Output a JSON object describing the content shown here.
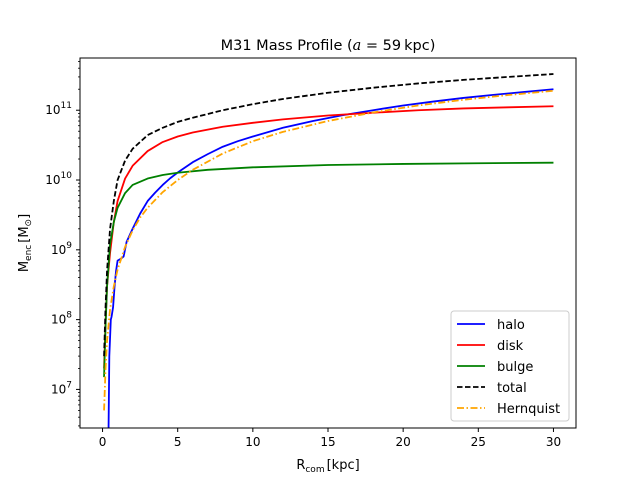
{
  "chart_data": {
    "type": "line",
    "title": {
      "prefix": "M31 Mass Profile (",
      "var": "a",
      "eq": " = 59",
      "unit": "kpc",
      "suffix": ")"
    },
    "xlabel": {
      "main": "R",
      "sub": "com",
      "unit": "[kpc]"
    },
    "ylabel": {
      "main": "M",
      "sub": "enc",
      "unit": "[M",
      "unit_sub": "⊙",
      "unit_close": "]"
    },
    "xlim": [
      -1.5,
      31.5
    ],
    "ylim": [
      2800000.0,
      560000000000.0
    ],
    "yscale": "log",
    "xticks": [
      0,
      5,
      10,
      15,
      20,
      25,
      30
    ],
    "xtick_labels": [
      "0",
      "5",
      "10",
      "15",
      "20",
      "25",
      "30"
    ],
    "yticks": [
      7,
      8,
      9,
      10,
      11
    ],
    "grid": false,
    "legend_position": "lower-right",
    "series": [
      {
        "name": "halo",
        "color": "#0000ff",
        "dash": "solid",
        "points": [
          [
            0.4,
            2800000.0
          ],
          [
            0.45,
            30000000.0
          ],
          [
            0.55,
            100000000.0
          ],
          [
            0.6,
            110000000.0
          ],
          [
            0.7,
            150000000.0
          ],
          [
            0.8,
            300000000.0
          ],
          [
            0.9,
            500000000.0
          ],
          [
            1.0,
            700000000.0
          ],
          [
            1.2,
            740000000.0
          ],
          [
            1.4,
            800000000.0
          ],
          [
            1.6,
            1300000000.0
          ],
          [
            2.0,
            2000000000.0
          ],
          [
            2.5,
            3300000000.0
          ],
          [
            3.0,
            5000000000.0
          ],
          [
            3.5,
            6600000000.0
          ],
          [
            4.0,
            8500000000.0
          ],
          [
            4.5,
            10600000000.0
          ],
          [
            5.0,
            12800000000.0
          ],
          [
            6.0,
            18000000000.0
          ],
          [
            7.0,
            23500000000.0
          ],
          [
            8.0,
            30000000000.0
          ],
          [
            9.0,
            36000000000.0
          ],
          [
            10.0,
            42000000000.0
          ],
          [
            12.0,
            56000000000.0
          ],
          [
            14.0,
            70000000000.0
          ],
          [
            16.0,
            85000000000.0
          ],
          [
            18.0,
            100000000000.0
          ],
          [
            20.0,
            117000000000.0
          ],
          [
            22.0,
            133000000000.0
          ],
          [
            24.0,
            150000000000.0
          ],
          [
            26.0,
            166000000000.0
          ],
          [
            28.0,
            182000000000.0
          ],
          [
            30.0,
            200000000000.0
          ]
        ]
      },
      {
        "name": "disk",
        "color": "#ff0000",
        "dash": "solid",
        "points": [
          [
            0.1,
            20000000.0
          ],
          [
            0.2,
            90000000.0
          ],
          [
            0.3,
            300000000.0
          ],
          [
            0.5,
            900000000.0
          ],
          [
            0.75,
            2500000000.0
          ],
          [
            1.0,
            5000000000.0
          ],
          [
            1.5,
            10500000000.0
          ],
          [
            2.0,
            16000000000.0
          ],
          [
            3.0,
            26000000000.0
          ],
          [
            4.0,
            35000000000.0
          ],
          [
            5.0,
            42000000000.0
          ],
          [
            6.0,
            48000000000.0
          ],
          [
            8.0,
            58000000000.0
          ],
          [
            10.0,
            66000000000.0
          ],
          [
            12.0,
            74000000000.0
          ],
          [
            15.0,
            84000000000.0
          ],
          [
            18.0,
            92000000000.0
          ],
          [
            21.0,
            100000000000.0
          ],
          [
            24.0,
            106000000000.0
          ],
          [
            27.0,
            110000000000.0
          ],
          [
            30.0,
            114000000000.0
          ]
        ]
      },
      {
        "name": "bulge",
        "color": "#008000",
        "dash": "solid",
        "points": [
          [
            0.1,
            15000000.0
          ],
          [
            0.2,
            80000000.0
          ],
          [
            0.3,
            300000000.0
          ],
          [
            0.5,
            1200000000.0
          ],
          [
            0.75,
            2500000000.0
          ],
          [
            1.0,
            4000000000.0
          ],
          [
            1.5,
            6500000000.0
          ],
          [
            2.0,
            8500000000.0
          ],
          [
            3.0,
            10500000000.0
          ],
          [
            4.0,
            11800000000.0
          ],
          [
            5.0,
            12700000000.0
          ],
          [
            7.0,
            14000000000.0
          ],
          [
            10.0,
            15200000000.0
          ],
          [
            15.0,
            16400000000.0
          ],
          [
            20.0,
            17000000000.0
          ],
          [
            25.0,
            17400000000.0
          ],
          [
            30.0,
            17700000000.0
          ]
        ]
      },
      {
        "name": "total",
        "color": "#000000",
        "dash": "dashed",
        "points": [
          [
            0.1,
            30000000.0
          ],
          [
            0.2,
            150000000.0
          ],
          [
            0.3,
            500000000.0
          ],
          [
            0.5,
            2000000000.0
          ],
          [
            0.75,
            5000000000.0
          ],
          [
            1.0,
            10000000000.0
          ],
          [
            1.5,
            19000000000.0
          ],
          [
            2.0,
            28000000000.0
          ],
          [
            3.0,
            44000000000.0
          ],
          [
            4.0,
            56000000000.0
          ],
          [
            5.0,
            68000000000.0
          ],
          [
            6.0,
            78000000000.0
          ],
          [
            8.0,
            100000000000.0
          ],
          [
            10.0,
            122000000000.0
          ],
          [
            12.0,
            145000000000.0
          ],
          [
            15.0,
            178000000000.0
          ],
          [
            18.0,
            210000000000.0
          ],
          [
            21.0,
            242000000000.0
          ],
          [
            24.0,
            272000000000.0
          ],
          [
            27.0,
            300000000000.0
          ],
          [
            30.0,
            330000000000.0
          ]
        ]
      },
      {
        "name": "Hernquist",
        "color": "#ffa500",
        "dash": "dashdot",
        "points": [
          [
            0.1,
            5000000.0
          ],
          [
            0.2,
            20000000.0
          ],
          [
            0.3,
            50000000.0
          ],
          [
            0.5,
            140000000.0
          ],
          [
            0.75,
            300000000.0
          ],
          [
            1.0,
            520000000.0
          ],
          [
            1.5,
            1100000000.0
          ],
          [
            2.0,
            1900000000.0
          ],
          [
            2.5,
            2900000000.0
          ],
          [
            3.0,
            4000000000.0
          ],
          [
            4.0,
            6700000000.0
          ],
          [
            5.0,
            10000000000.0
          ],
          [
            6.0,
            14000000000.0
          ],
          [
            8.0,
            24000000000.0
          ],
          [
            10.0,
            36000000000.0
          ],
          [
            12.0,
            49000000000.0
          ],
          [
            15.0,
            70000000000.0
          ],
          [
            18.0,
            93000000000.0
          ],
          [
            21.0,
            117000000000.0
          ],
          [
            24.0,
            141000000000.0
          ],
          [
            27.0,
            165000000000.0
          ],
          [
            30.0,
            190000000000.0
          ]
        ]
      }
    ]
  }
}
